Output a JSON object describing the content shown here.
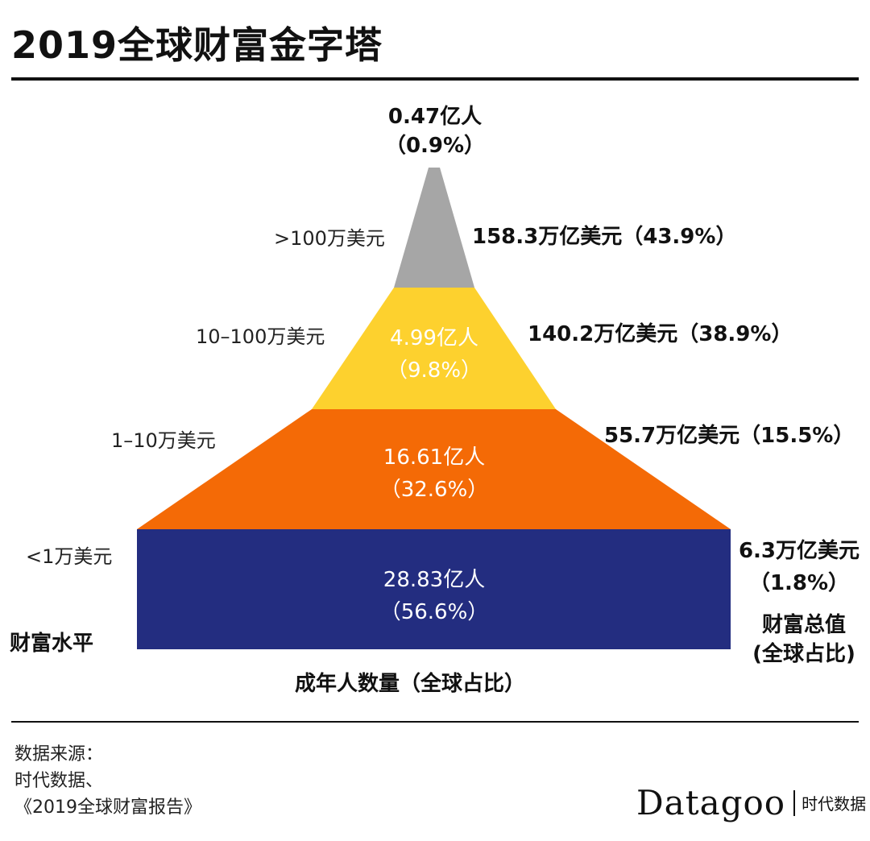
{
  "title": "2019全球财富金字塔",
  "chart_data": {
    "type": "pyramid",
    "title": "2019全球财富金字塔",
    "xlabel": "成年人数量（全球占比）",
    "left_axis_label": "财富水平",
    "right_axis_label": "财富总值\n(全球占比)",
    "tiers": [
      {
        "wealth_level": ">100万美元",
        "adults": "0.47亿人",
        "adults_share": "（0.9%）",
        "adults_value": 0.47,
        "adults_pct": 0.9,
        "wealth_total": "158.3万亿美元（43.9%）",
        "wealth_value": 158.3,
        "wealth_pct": 43.9,
        "color": "#a6a6a6"
      },
      {
        "wealth_level": "10–100万美元",
        "adults": "4.99亿人",
        "adults_share": "（9.8%）",
        "adults_value": 4.99,
        "adults_pct": 9.8,
        "wealth_total": "140.2万亿美元（38.9%）",
        "wealth_value": 140.2,
        "wealth_pct": 38.9,
        "color": "#fdd12e"
      },
      {
        "wealth_level": "1–10万美元",
        "adults": "16.61亿人",
        "adults_share": "（32.6%）",
        "adults_value": 16.61,
        "adults_pct": 32.6,
        "wealth_total": "55.7万亿美元（15.5%）",
        "wealth_value": 55.7,
        "wealth_pct": 15.5,
        "color": "#f46a06"
      },
      {
        "wealth_level": "<1万美元",
        "adults": "28.83亿人",
        "adults_share": "（56.6%）",
        "adults_value": 28.83,
        "adults_pct": 56.6,
        "wealth_total": "6.3万亿美元",
        "wealth_total_share": "（1.8%）",
        "wealth_value": 6.3,
        "wealth_pct": 1.8,
        "color": "#232d80"
      }
    ]
  },
  "source": {
    "line1": "数据来源：",
    "line2": "时代数据、",
    "line3": "《2019全球财富报告》"
  },
  "brand": {
    "name": "Datagoo",
    "cn": "时代数据"
  }
}
